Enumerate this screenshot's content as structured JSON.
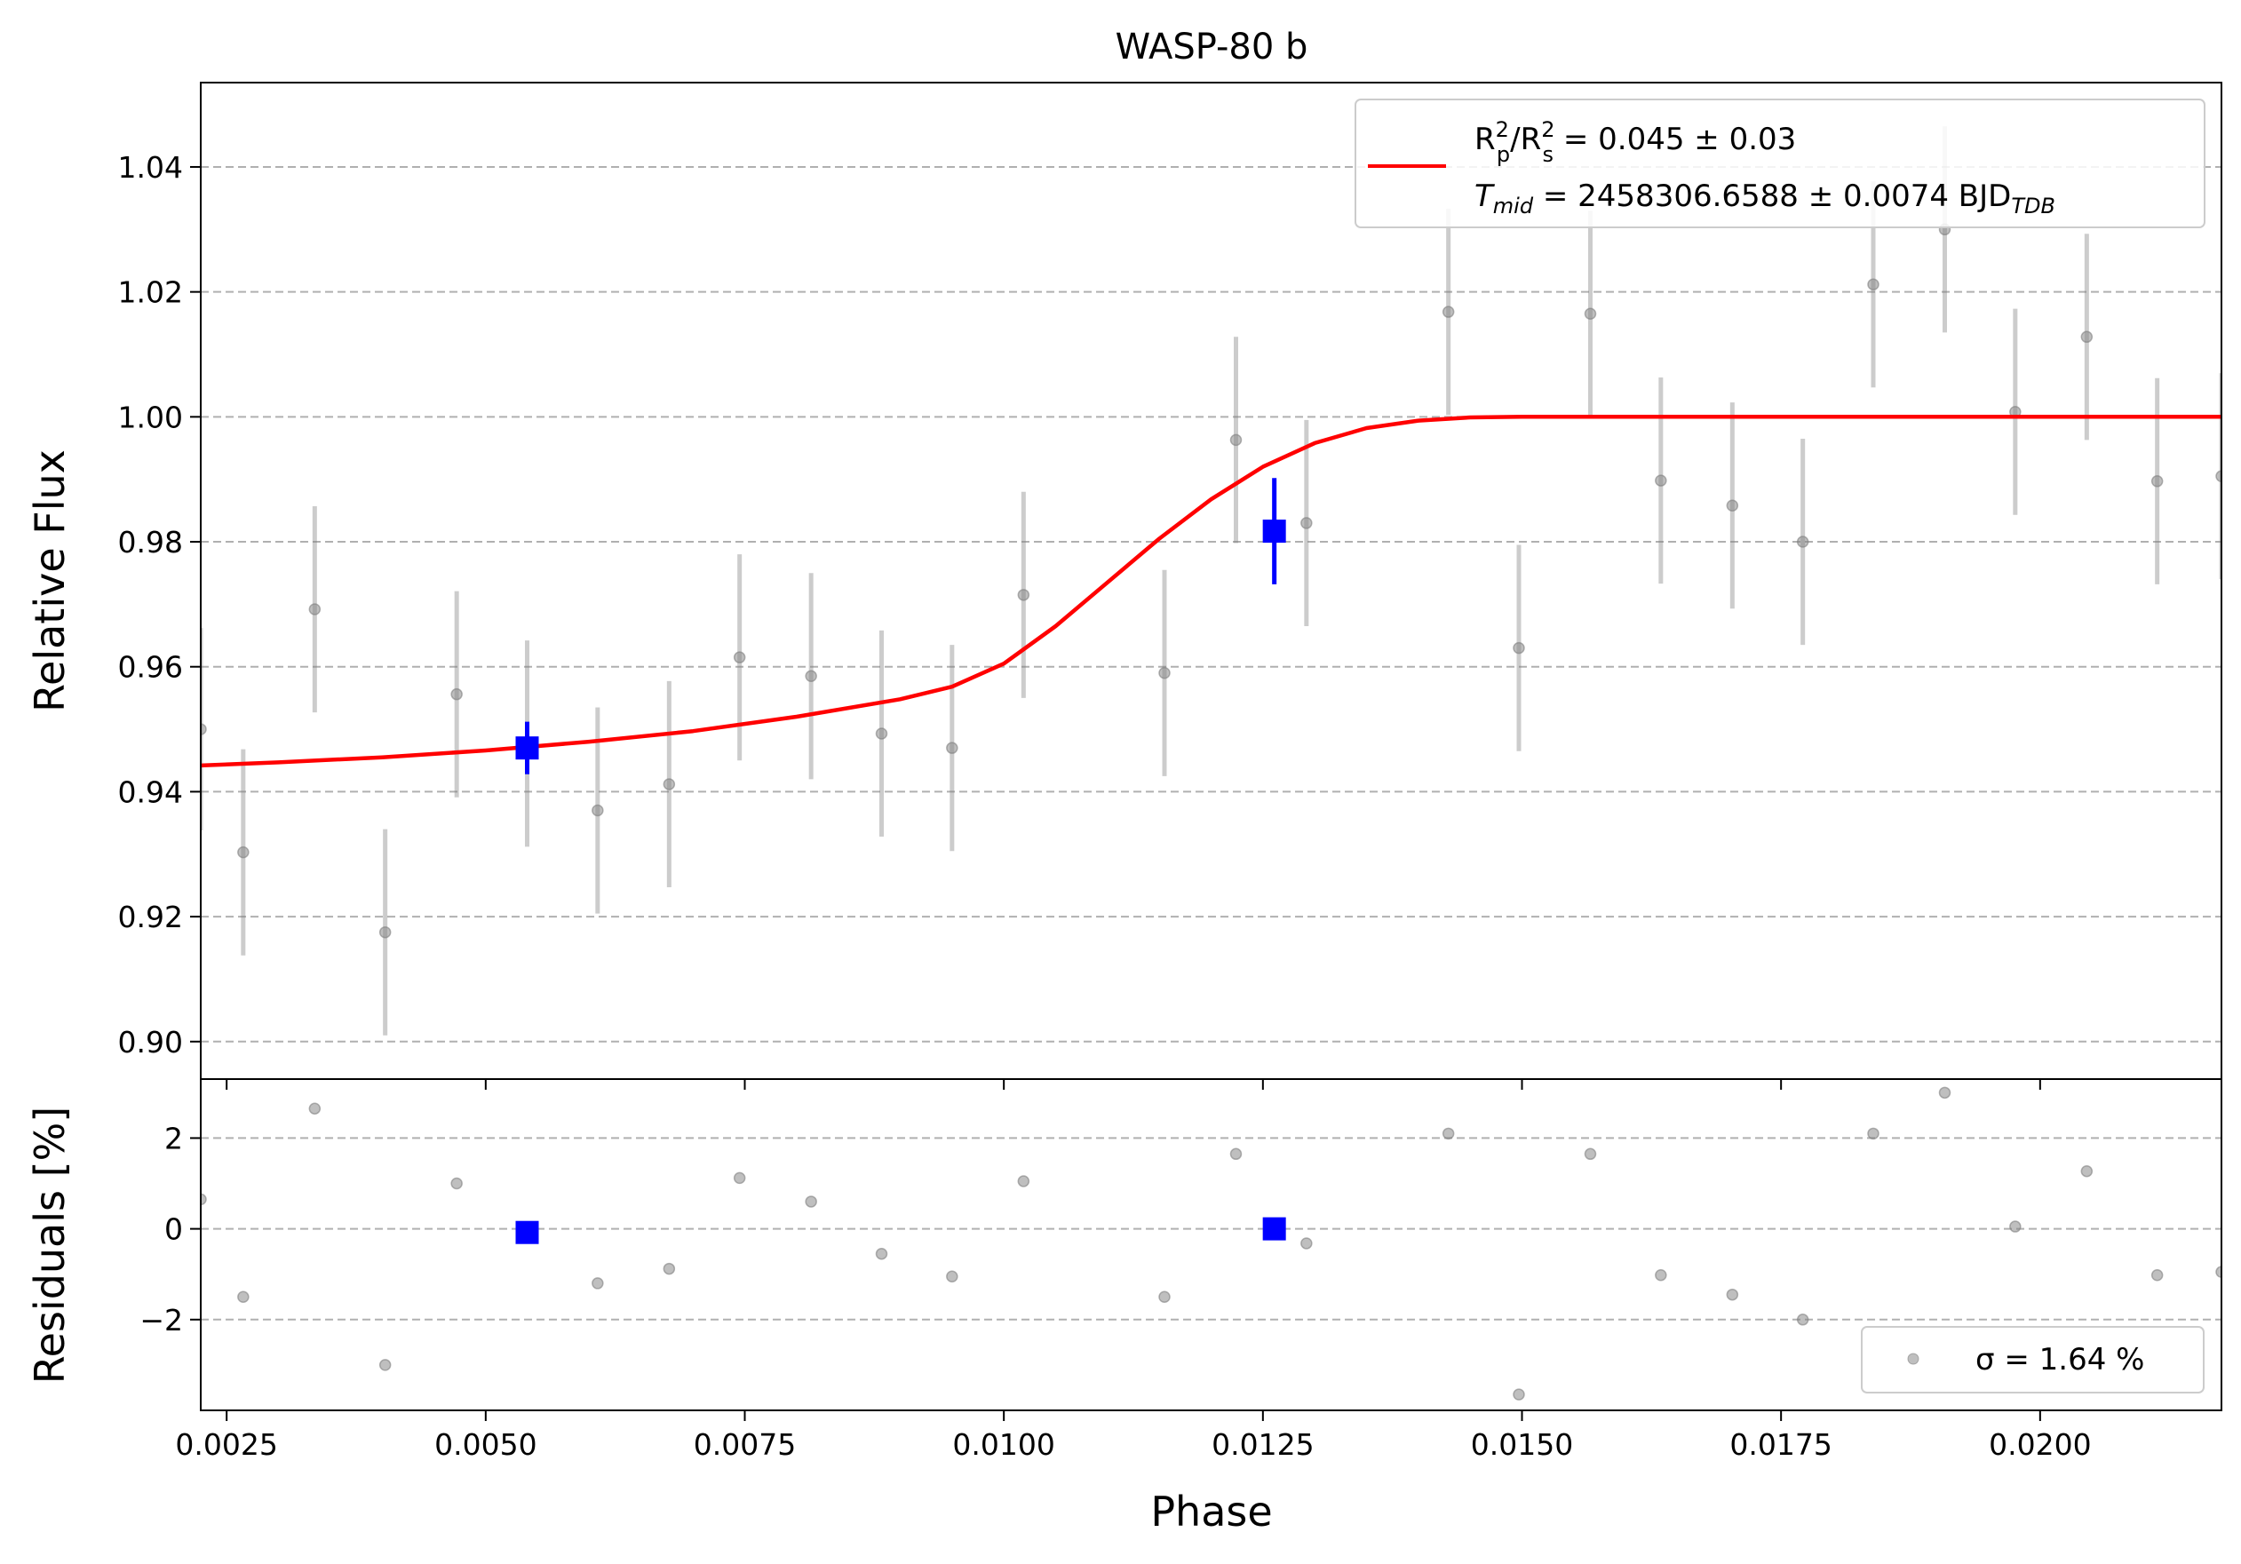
{
  "chart_data": [
    {
      "type": "scatter",
      "panel": "main",
      "title": "WASP-80 b",
      "xlabel": "",
      "ylabel": "Relative Flux",
      "xlim": [
        0.00225,
        0.02175
      ],
      "ylim": [
        0.894,
        1.0535
      ],
      "grid": "y-dashed",
      "xticks": [
        0.0025,
        0.005,
        0.0075,
        0.01,
        0.0125,
        0.015,
        0.0175,
        0.02
      ],
      "yticks": [
        0.9,
        0.92,
        0.94,
        0.96,
        0.98,
        1.0,
        1.02,
        1.04
      ],
      "yticklabels": [
        "0.90",
        "0.92",
        "0.94",
        "0.96",
        "0.98",
        "1.00",
        "1.02",
        "1.04"
      ],
      "legend": {
        "placement": "top-right",
        "line1": "R_p^2/R_s^2 = 0.045 ± 0.03",
        "line2": "T_mid = 2458306.6588 ± 0.0074 BJD_TDB"
      },
      "series": [
        {
          "role": "data",
          "color": "#808080",
          "points": [
            {
              "x": 0.00225,
              "y": 0.95,
              "err": 0.0162
            },
            {
              "x": 0.00266,
              "y": 0.9303,
              "err": 0.0165
            },
            {
              "x": 0.00335,
              "y": 0.9692,
              "err": 0.0165
            },
            {
              "x": 0.00403,
              "y": 0.9175,
              "err": 0.0165
            },
            {
              "x": 0.00472,
              "y": 0.9556,
              "err": 0.0165
            },
            {
              "x": 0.0054,
              "y": 0.9477,
              "err": 0.0165
            },
            {
              "x": 0.00608,
              "y": 0.937,
              "err": 0.0165
            },
            {
              "x": 0.00677,
              "y": 0.9412,
              "err": 0.0165
            },
            {
              "x": 0.00745,
              "y": 0.9615,
              "err": 0.0165
            },
            {
              "x": 0.00814,
              "y": 0.9585,
              "err": 0.0165
            },
            {
              "x": 0.00882,
              "y": 0.9493,
              "err": 0.0165
            },
            {
              "x": 0.0095,
              "y": 0.947,
              "err": 0.0165
            },
            {
              "x": 0.01019,
              "y": 0.9715,
              "err": 0.0165
            },
            {
              "x": 0.01155,
              "y": 0.959,
              "err": 0.0165
            },
            {
              "x": 0.01224,
              "y": 0.9963,
              "err": 0.0165
            },
            {
              "x": 0.01292,
              "y": 0.983,
              "err": 0.0165
            },
            {
              "x": 0.01429,
              "y": 1.0168,
              "err": 0.0165
            },
            {
              "x": 0.01497,
              "y": 0.963,
              "err": 0.0165
            },
            {
              "x": 0.01566,
              "y": 1.0165,
              "err": 0.0165
            },
            {
              "x": 0.01634,
              "y": 0.9898,
              "err": 0.0165
            },
            {
              "x": 0.01703,
              "y": 0.9858,
              "err": 0.0165
            },
            {
              "x": 0.01771,
              "y": 0.98,
              "err": 0.0165
            },
            {
              "x": 0.01839,
              "y": 1.0212,
              "err": 0.0165
            },
            {
              "x": 0.01908,
              "y": 1.03,
              "err": 0.0165
            },
            {
              "x": 0.01976,
              "y": 1.0008,
              "err": 0.0165
            },
            {
              "x": 0.02045,
              "y": 1.0128,
              "err": 0.0165
            },
            {
              "x": 0.02113,
              "y": 0.9897,
              "err": 0.0165
            },
            {
              "x": 0.02175,
              "y": 0.9905,
              "err": 0.0165
            }
          ]
        },
        {
          "role": "binned",
          "color": "#0000ff",
          "points": [
            {
              "x": 0.0054,
              "y": 0.947,
              "err": 0.0042
            },
            {
              "x": 0.01261,
              "y": 0.9817,
              "err": 0.0085
            }
          ]
        },
        {
          "role": "model",
          "color": "#ff0000",
          "x": [
            0.00225,
            0.003,
            0.004,
            0.005,
            0.006,
            0.007,
            0.008,
            0.009,
            0.0095,
            0.01,
            0.0105,
            0.011,
            0.0115,
            0.012,
            0.0125,
            0.013,
            0.0135,
            0.014,
            0.0145,
            0.015,
            0.0155,
            0.016,
            0.017,
            0.018,
            0.019,
            0.02,
            0.021,
            0.02175
          ],
          "y": [
            0.9442,
            0.9447,
            0.9455,
            0.9466,
            0.948,
            0.9497,
            0.952,
            0.9548,
            0.9568,
            0.9605,
            0.9665,
            0.9735,
            0.9805,
            0.9868,
            0.992,
            0.9958,
            0.9982,
            0.9994,
            0.9999,
            1.0,
            1.0,
            1.0,
            1.0,
            1.0,
            1.0,
            1.0,
            1.0,
            1.0
          ]
        }
      ]
    },
    {
      "type": "scatter",
      "panel": "residuals",
      "xlabel": "Phase",
      "ylabel": "Residuals [%]",
      "xlim": [
        0.00225,
        0.02175
      ],
      "ylim": [
        -4.0,
        3.3
      ],
      "grid": "y-dashed",
      "xticks": [
        0.0025,
        0.005,
        0.0075,
        0.01,
        0.0125,
        0.015,
        0.0175,
        0.02
      ],
      "xticklabels": [
        "0.0025",
        "0.0050",
        "0.0075",
        "0.0100",
        "0.0125",
        "0.0150",
        "0.0175",
        "0.0200"
      ],
      "yticks": [
        -2,
        0,
        2
      ],
      "yticklabels": [
        "−2",
        "0",
        "2"
      ],
      "legend": {
        "placement": "bottom-right",
        "text": "σ = 1.64 %"
      },
      "series": [
        {
          "role": "residuals",
          "color": "#808080",
          "points": [
            {
              "x": 0.00225,
              "y": 0.65
            },
            {
              "x": 0.00266,
              "y": -1.5
            },
            {
              "x": 0.00335,
              "y": 2.65
            },
            {
              "x": 0.00403,
              "y": -3.0
            },
            {
              "x": 0.00472,
              "y": 1.0
            },
            {
              "x": 0.00608,
              "y": -1.2
            },
            {
              "x": 0.00677,
              "y": -0.88
            },
            {
              "x": 0.00745,
              "y": 1.12
            },
            {
              "x": 0.00814,
              "y": 0.6
            },
            {
              "x": 0.00882,
              "y": -0.55
            },
            {
              "x": 0.0095,
              "y": -1.05
            },
            {
              "x": 0.01019,
              "y": 1.05
            },
            {
              "x": 0.01155,
              "y": -1.5
            },
            {
              "x": 0.01224,
              "y": 1.65
            },
            {
              "x": 0.01292,
              "y": -0.32
            },
            {
              "x": 0.01429,
              "y": 2.1
            },
            {
              "x": 0.01497,
              "y": -3.65
            },
            {
              "x": 0.01566,
              "y": 1.65
            },
            {
              "x": 0.01634,
              "y": -1.02
            },
            {
              "x": 0.01703,
              "y": -1.45
            },
            {
              "x": 0.01771,
              "y": -2.0
            },
            {
              "x": 0.01839,
              "y": 2.1
            },
            {
              "x": 0.01908,
              "y": 3.0
            },
            {
              "x": 0.01976,
              "y": 0.05
            },
            {
              "x": 0.02045,
              "y": 1.27
            },
            {
              "x": 0.02113,
              "y": -1.02
            },
            {
              "x": 0.02175,
              "y": -0.95
            }
          ]
        },
        {
          "role": "binned",
          "color": "#0000ff",
          "points": [
            {
              "x": 0.0054,
              "y": -0.08
            },
            {
              "x": 0.01261,
              "y": 0.0
            }
          ]
        }
      ]
    }
  ]
}
